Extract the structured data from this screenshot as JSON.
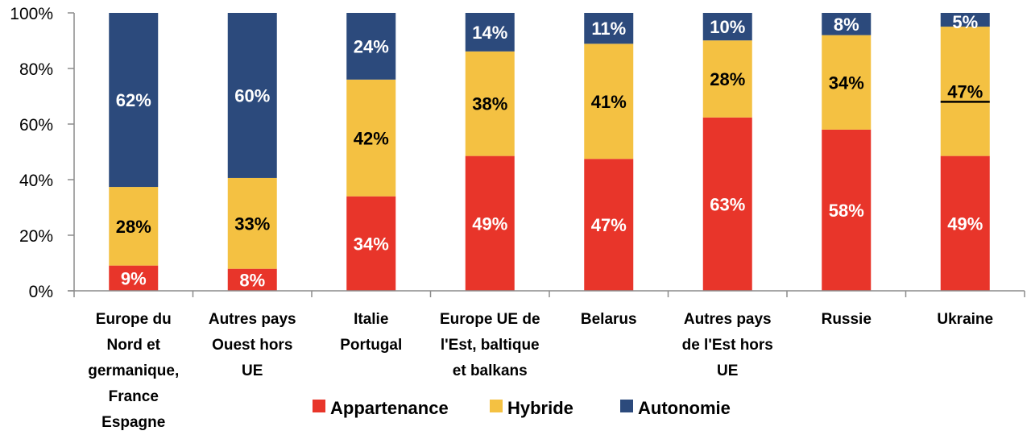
{
  "chart_data": {
    "type": "bar",
    "stacked": true,
    "percent_stacked": true,
    "title": "",
    "xlabel": "",
    "ylabel": "",
    "ylim": [
      0,
      100
    ],
    "yticks": [
      "0%",
      "20%",
      "40%",
      "60%",
      "80%",
      "100%"
    ],
    "ytick_values": [
      0,
      20,
      40,
      60,
      80,
      100
    ],
    "grid": false,
    "legend_position": "bottom",
    "categories": [
      [
        "Europe du",
        "Nord et",
        "germanique,",
        "France",
        "Espagne"
      ],
      [
        "Autres pays",
        "Ouest hors",
        "UE"
      ],
      [
        "Italie",
        "Portugal"
      ],
      [
        "Europe UE de",
        "l'Est, baltique",
        "et balkans"
      ],
      [
        "Belarus"
      ],
      [
        "Autres pays",
        "de l'Est hors",
        "UE"
      ],
      [
        "Russie"
      ],
      [
        "Ukraine"
      ]
    ],
    "series": [
      {
        "name": "Appartenance",
        "color": "#E8352A",
        "label_color": "#FFFFFF",
        "values": [
          9,
          8,
          34,
          49,
          47,
          63,
          58,
          49
        ]
      },
      {
        "name": "Hybride",
        "color": "#F4C142",
        "label_color": "#000000",
        "values": [
          28,
          33,
          42,
          38,
          41,
          28,
          34,
          47
        ]
      },
      {
        "name": "Autonomie",
        "color": "#2C4A7C",
        "label_color": "#FFFFFF",
        "values": [
          62,
          60,
          24,
          14,
          11,
          10,
          8,
          5
        ]
      }
    ],
    "annotations": [
      {
        "type": "underline",
        "category_index": 7,
        "series": "Hybride",
        "value_label": "47%"
      }
    ]
  }
}
